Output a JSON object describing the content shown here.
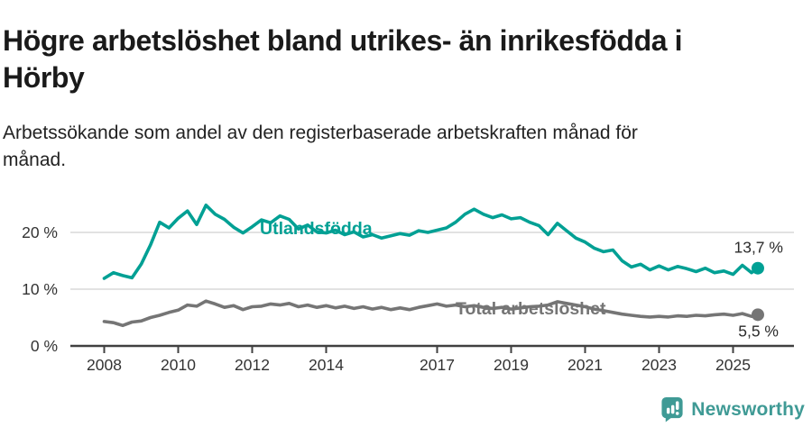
{
  "header": {
    "title_lines": [
      "Högre arbetslöshet bland utrikes- än inrikesfödda i",
      "Hörby"
    ],
    "subtitle_lines": [
      "Arbetssökande som andel av den registerbaserade arbetskraften månad för",
      "månad."
    ]
  },
  "branding": {
    "name": "Newsworthy",
    "logo_icon": "newsworthy-speech-bubble-chart-icon",
    "color": "#3f9a95"
  },
  "colors": {
    "accent_teal": "#00a094",
    "line_gray": "#757575",
    "axis_line": "#404040",
    "gridline": "#d8d8d8",
    "tick_text": "#333333",
    "value_text": "#2b2b2b"
  },
  "chart_data": {
    "type": "line",
    "title": "Högre arbetslöshet bland utrikes- än inrikesfödda i Hörby",
    "subtitle": "Arbetssökande som andel av den registerbaserade arbetskraften månad för månad.",
    "x_unit": "decimal_year",
    "xlim": [
      2008,
      2025.9
    ],
    "ylim": [
      0,
      26
    ],
    "grid": "horizontal",
    "legend": "inline-labels-on-lines",
    "x_ticks": [
      2008,
      2010,
      2012,
      2014,
      2017,
      2019,
      2021,
      2023,
      2025
    ],
    "y_ticks": [
      {
        "value": 0,
        "label": "0 %"
      },
      {
        "value": 10,
        "label": "10 %"
      },
      {
        "value": 20,
        "label": "20 %"
      }
    ],
    "x": [
      2008,
      2008.25,
      2008.5,
      2008.75,
      2009,
      2009.25,
      2009.5,
      2009.75,
      2010,
      2010.25,
      2010.5,
      2010.75,
      2011,
      2011.25,
      2011.5,
      2011.75,
      2012,
      2012.25,
      2012.5,
      2012.75,
      2013,
      2013.25,
      2013.5,
      2013.75,
      2014,
      2014.25,
      2014.5,
      2014.75,
      2015,
      2015.25,
      2015.5,
      2015.75,
      2016,
      2016.25,
      2016.5,
      2016.75,
      2017,
      2017.25,
      2017.5,
      2017.75,
      2018,
      2018.25,
      2018.5,
      2018.75,
      2019,
      2019.25,
      2019.5,
      2019.75,
      2020,
      2020.25,
      2020.5,
      2020.75,
      2021,
      2021.25,
      2021.5,
      2021.75,
      2022,
      2022.25,
      2022.5,
      2022.75,
      2023,
      2023.25,
      2023.5,
      2023.75,
      2024,
      2024.25,
      2024.5,
      2024.75,
      2025,
      2025.25,
      2025.5,
      2025.67
    ],
    "series": [
      {
        "name": "Utlandsfödda",
        "color": "#00a094",
        "end_label": "13,7 %",
        "end_value": 13.7,
        "values": [
          11.9,
          12.9,
          12.4,
          12.0,
          14.4,
          17.8,
          21.8,
          20.8,
          22.5,
          23.8,
          21.4,
          24.8,
          23.2,
          22.3,
          20.9,
          19.9,
          21.0,
          22.2,
          21.7,
          22.9,
          22.3,
          20.6,
          21.3,
          20.1,
          19.9,
          20.4,
          19.6,
          20.1,
          19.2,
          19.6,
          19.0,
          19.4,
          19.8,
          19.5,
          20.3,
          20.0,
          20.4,
          20.8,
          21.8,
          23.2,
          24.1,
          23.2,
          22.6,
          23.1,
          22.4,
          22.6,
          21.8,
          21.2,
          19.6,
          21.6,
          20.3,
          19.0,
          18.3,
          17.2,
          16.6,
          16.9,
          15.0,
          13.9,
          14.4,
          13.4,
          14.1,
          13.4,
          14.0,
          13.6,
          13.1,
          13.7,
          12.9,
          13.2,
          12.6,
          14.2,
          12.9,
          13.7
        ]
      },
      {
        "name": "Total arbetslöshet",
        "color": "#757575",
        "end_label": "5,5 %",
        "end_value": 5.5,
        "values": [
          4.3,
          4.1,
          3.6,
          4.2,
          4.4,
          5.0,
          5.4,
          5.9,
          6.3,
          7.2,
          7.0,
          7.9,
          7.4,
          6.8,
          7.1,
          6.4,
          6.9,
          7.0,
          7.4,
          7.2,
          7.5,
          6.9,
          7.2,
          6.8,
          7.1,
          6.7,
          7.0,
          6.6,
          6.9,
          6.5,
          6.8,
          6.4,
          6.7,
          6.4,
          6.8,
          7.1,
          7.4,
          7.0,
          7.2,
          6.9,
          7.1,
          6.8,
          6.6,
          6.8,
          6.5,
          6.7,
          6.9,
          7.0,
          7.2,
          7.8,
          7.5,
          7.2,
          6.9,
          6.5,
          6.2,
          5.9,
          5.6,
          5.4,
          5.2,
          5.1,
          5.2,
          5.1,
          5.3,
          5.2,
          5.4,
          5.3,
          5.5,
          5.6,
          5.4,
          5.7,
          5.2,
          5.5
        ]
      }
    ]
  }
}
